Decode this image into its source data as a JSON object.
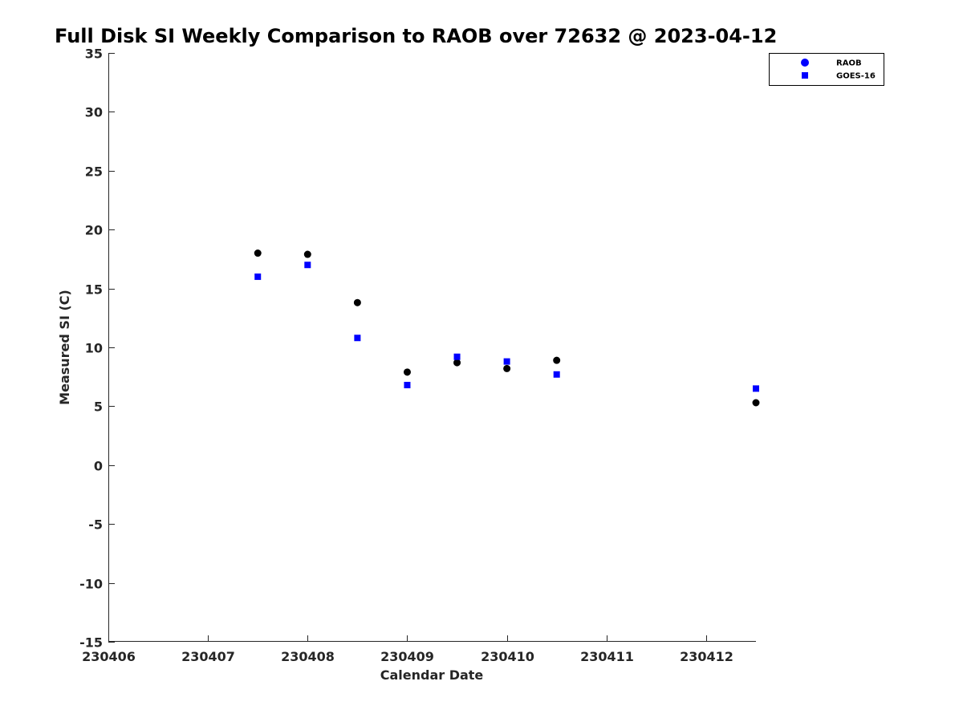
{
  "chart_data": {
    "type": "scatter",
    "title": "Full Disk SI Weekly Comparison to RAOB over 72632 @ 2023-04-12",
    "xlabel": "Calendar Date",
    "ylabel": "Measured SI (C)",
    "xlim": [
      230406,
      230412.5
    ],
    "ylim": [
      -15,
      35
    ],
    "xticks": [
      230406,
      230407,
      230408,
      230409,
      230410,
      230411,
      230412
    ],
    "xtick_labels": [
      "230406",
      "230407",
      "230408",
      "230409",
      "230410",
      "230411",
      "230412"
    ],
    "yticks": [
      -15,
      -10,
      -5,
      0,
      5,
      10,
      15,
      20,
      25,
      30,
      35
    ],
    "ytick_labels": [
      "-15",
      "-10",
      "-5",
      "0",
      "5",
      "10",
      "15",
      "20",
      "25",
      "30",
      "35"
    ],
    "grid": false,
    "legend_position": "top-right",
    "series": [
      {
        "name": "RAOB",
        "marker": "circle",
        "color": "#000000",
        "legend_color": "#0000ff",
        "x": [
          230407.5,
          230408.0,
          230408.5,
          230409.0,
          230409.5,
          230410.0,
          230410.5,
          230412.5
        ],
        "y": [
          18.0,
          17.9,
          13.8,
          7.9,
          8.7,
          8.2,
          8.9,
          5.3
        ]
      },
      {
        "name": "GOES-16",
        "marker": "square",
        "color": "#0000ff",
        "legend_color": "#0000ff",
        "x": [
          230407.5,
          230408.0,
          230408.5,
          230409.0,
          230409.5,
          230410.0,
          230410.5,
          230412.5
        ],
        "y": [
          16.0,
          17.0,
          10.8,
          6.8,
          9.2,
          8.8,
          7.7,
          6.5
        ]
      }
    ]
  }
}
